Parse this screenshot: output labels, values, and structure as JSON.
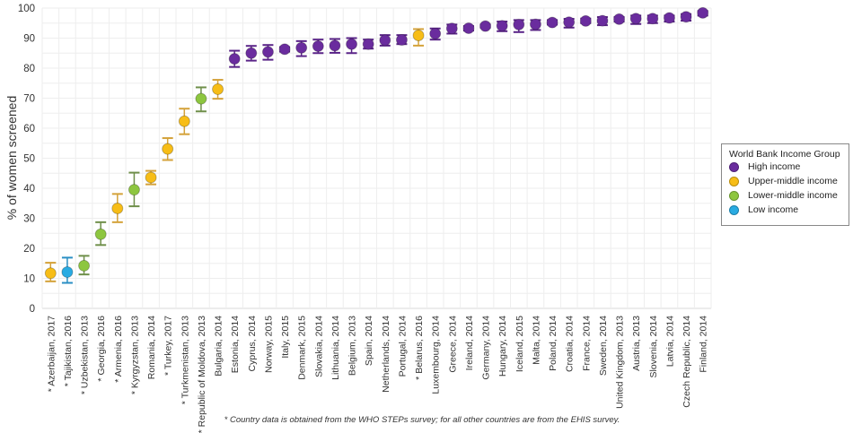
{
  "chart_data": {
    "type": "scatter",
    "ylabel": "% of women screened",
    "ylim": [
      0,
      100
    ],
    "yticks": [
      0,
      10,
      20,
      30,
      40,
      50,
      60,
      70,
      80,
      90,
      100
    ],
    "grid": true,
    "legend_placement": "right",
    "legend_title": "World Bank Income Group",
    "groups": [
      {
        "name": "High income",
        "color": "#6a2c9e",
        "bar": "#5a2488"
      },
      {
        "name": "Upper-middle income",
        "color": "#f7bd16",
        "bar": "#d4a23a"
      },
      {
        "name": "Lower-middle income",
        "color": "#8dc63f",
        "bar": "#6f8f4a"
      },
      {
        "name": "Low income",
        "color": "#29abe2",
        "bar": "#2a8fc4"
      }
    ],
    "points": [
      {
        "label": "* Azerbaijan, 2017",
        "group": 1,
        "value": 11.7,
        "low": 9.0,
        "high": 15.2
      },
      {
        "label": "* Tajikistan, 2016",
        "group": 3,
        "value": 12.1,
        "low": 8.5,
        "high": 16.9
      },
      {
        "label": "* Uzbekistan, 2013",
        "group": 2,
        "value": 14.2,
        "low": 11.3,
        "high": 17.5
      },
      {
        "label": "* Georgia, 2016",
        "group": 2,
        "value": 24.7,
        "low": 21.1,
        "high": 28.7
      },
      {
        "label": "* Armenia, 2016",
        "group": 1,
        "value": 33.3,
        "low": 28.7,
        "high": 38.1
      },
      {
        "label": "* Kyrgyzstan, 2013",
        "group": 2,
        "value": 39.5,
        "low": 34.0,
        "high": 45.2
      },
      {
        "label": "Romania, 2014",
        "group": 1,
        "value": 43.6,
        "low": 41.3,
        "high": 45.8
      },
      {
        "label": "* Turkey, 2017",
        "group": 1,
        "value": 53.1,
        "low": 49.4,
        "high": 56.7
      },
      {
        "label": "* Turkmenistan, 2013",
        "group": 1,
        "value": 62.3,
        "low": 58.0,
        "high": 66.5
      },
      {
        "label": "* Republic of Moldova, 2013",
        "group": 2,
        "value": 69.8,
        "low": 65.6,
        "high": 73.6
      },
      {
        "label": "Bulgaria, 2014",
        "group": 1,
        "value": 73.0,
        "low": 69.8,
        "high": 76.1
      },
      {
        "label": "Estonia, 2014",
        "group": 0,
        "value": 83.1,
        "low": 80.4,
        "high": 85.8
      },
      {
        "label": "Cyprus, 2014",
        "group": 0,
        "value": 85.0,
        "low": 82.5,
        "high": 87.4
      },
      {
        "label": "Norway, 2015",
        "group": 0,
        "value": 85.4,
        "low": 82.8,
        "high": 87.7
      },
      {
        "label": "Italy, 2015",
        "group": 0,
        "value": 86.3,
        "low": 85.5,
        "high": 87.0
      },
      {
        "label": "Denmark, 2015",
        "group": 0,
        "value": 86.8,
        "low": 84.0,
        "high": 89.0
      },
      {
        "label": "Slovakia, 2014",
        "group": 0,
        "value": 87.3,
        "low": 85.0,
        "high": 89.5
      },
      {
        "label": "Lithuania, 2014",
        "group": 0,
        "value": 87.5,
        "low": 85.1,
        "high": 89.7
      },
      {
        "label": "Belgium, 2013",
        "group": 0,
        "value": 88.0,
        "low": 85.0,
        "high": 90.0
      },
      {
        "label": "Spain, 2014",
        "group": 0,
        "value": 88.0,
        "low": 86.5,
        "high": 89.5
      },
      {
        "label": "Netherlands, 2014",
        "group": 0,
        "value": 89.3,
        "low": 87.5,
        "high": 91.0
      },
      {
        "label": "Portugal, 2014",
        "group": 0,
        "value": 89.4,
        "low": 88.0,
        "high": 91.0
      },
      {
        "label": "* Belarus, 2016",
        "group": 1,
        "value": 90.9,
        "low": 87.5,
        "high": 93.0
      },
      {
        "label": "Luxembourg, 2014",
        "group": 0,
        "value": 91.5,
        "low": 89.5,
        "high": 93.2
      },
      {
        "label": "Greece, 2014",
        "group": 0,
        "value": 93.2,
        "low": 91.5,
        "high": 94.5
      },
      {
        "label": "Ireland, 2014",
        "group": 0,
        "value": 93.3,
        "low": 92.5,
        "high": 94.0
      },
      {
        "label": "Germany, 2014",
        "group": 0,
        "value": 94.0,
        "low": 93.5,
        "high": 94.5
      },
      {
        "label": "Hungary, 2014",
        "group": 0,
        "value": 94.1,
        "low": 92.3,
        "high": 95.5
      },
      {
        "label": "Iceland, 2015",
        "group": 0,
        "value": 94.5,
        "low": 92.0,
        "high": 96.0
      },
      {
        "label": "Malta, 2014",
        "group": 0,
        "value": 94.6,
        "low": 92.7,
        "high": 96.0
      },
      {
        "label": "Poland, 2014",
        "group": 0,
        "value": 95.2,
        "low": 94.5,
        "high": 96.0
      },
      {
        "label": "Croatia, 2014",
        "group": 0,
        "value": 95.3,
        "low": 93.5,
        "high": 96.4
      },
      {
        "label": "France, 2014",
        "group": 0,
        "value": 95.7,
        "low": 95.0,
        "high": 96.5
      },
      {
        "label": "Sweden, 2014",
        "group": 0,
        "value": 95.8,
        "low": 94.3,
        "high": 97.0
      },
      {
        "label": "United Kingdom, 2013",
        "group": 0,
        "value": 96.3,
        "low": 95.5,
        "high": 97.0
      },
      {
        "label": "Austria, 2013",
        "group": 0,
        "value": 96.5,
        "low": 94.7,
        "high": 97.5
      },
      {
        "label": "Slovenia, 2014",
        "group": 0,
        "value": 96.5,
        "low": 95.0,
        "high": 97.5
      },
      {
        "label": "Latvia, 2014",
        "group": 0,
        "value": 96.7,
        "low": 95.5,
        "high": 97.5
      },
      {
        "label": "Czech Republic, 2014",
        "group": 0,
        "value": 97.1,
        "low": 95.8,
        "high": 98.0
      },
      {
        "label": "Finland, 2014",
        "group": 0,
        "value": 98.4,
        "low": 97.5,
        "high": 99.0
      }
    ],
    "footnote": "* Country data is obtained from the WHO STEPs survey; for all other countries are from the EHIS survey."
  }
}
